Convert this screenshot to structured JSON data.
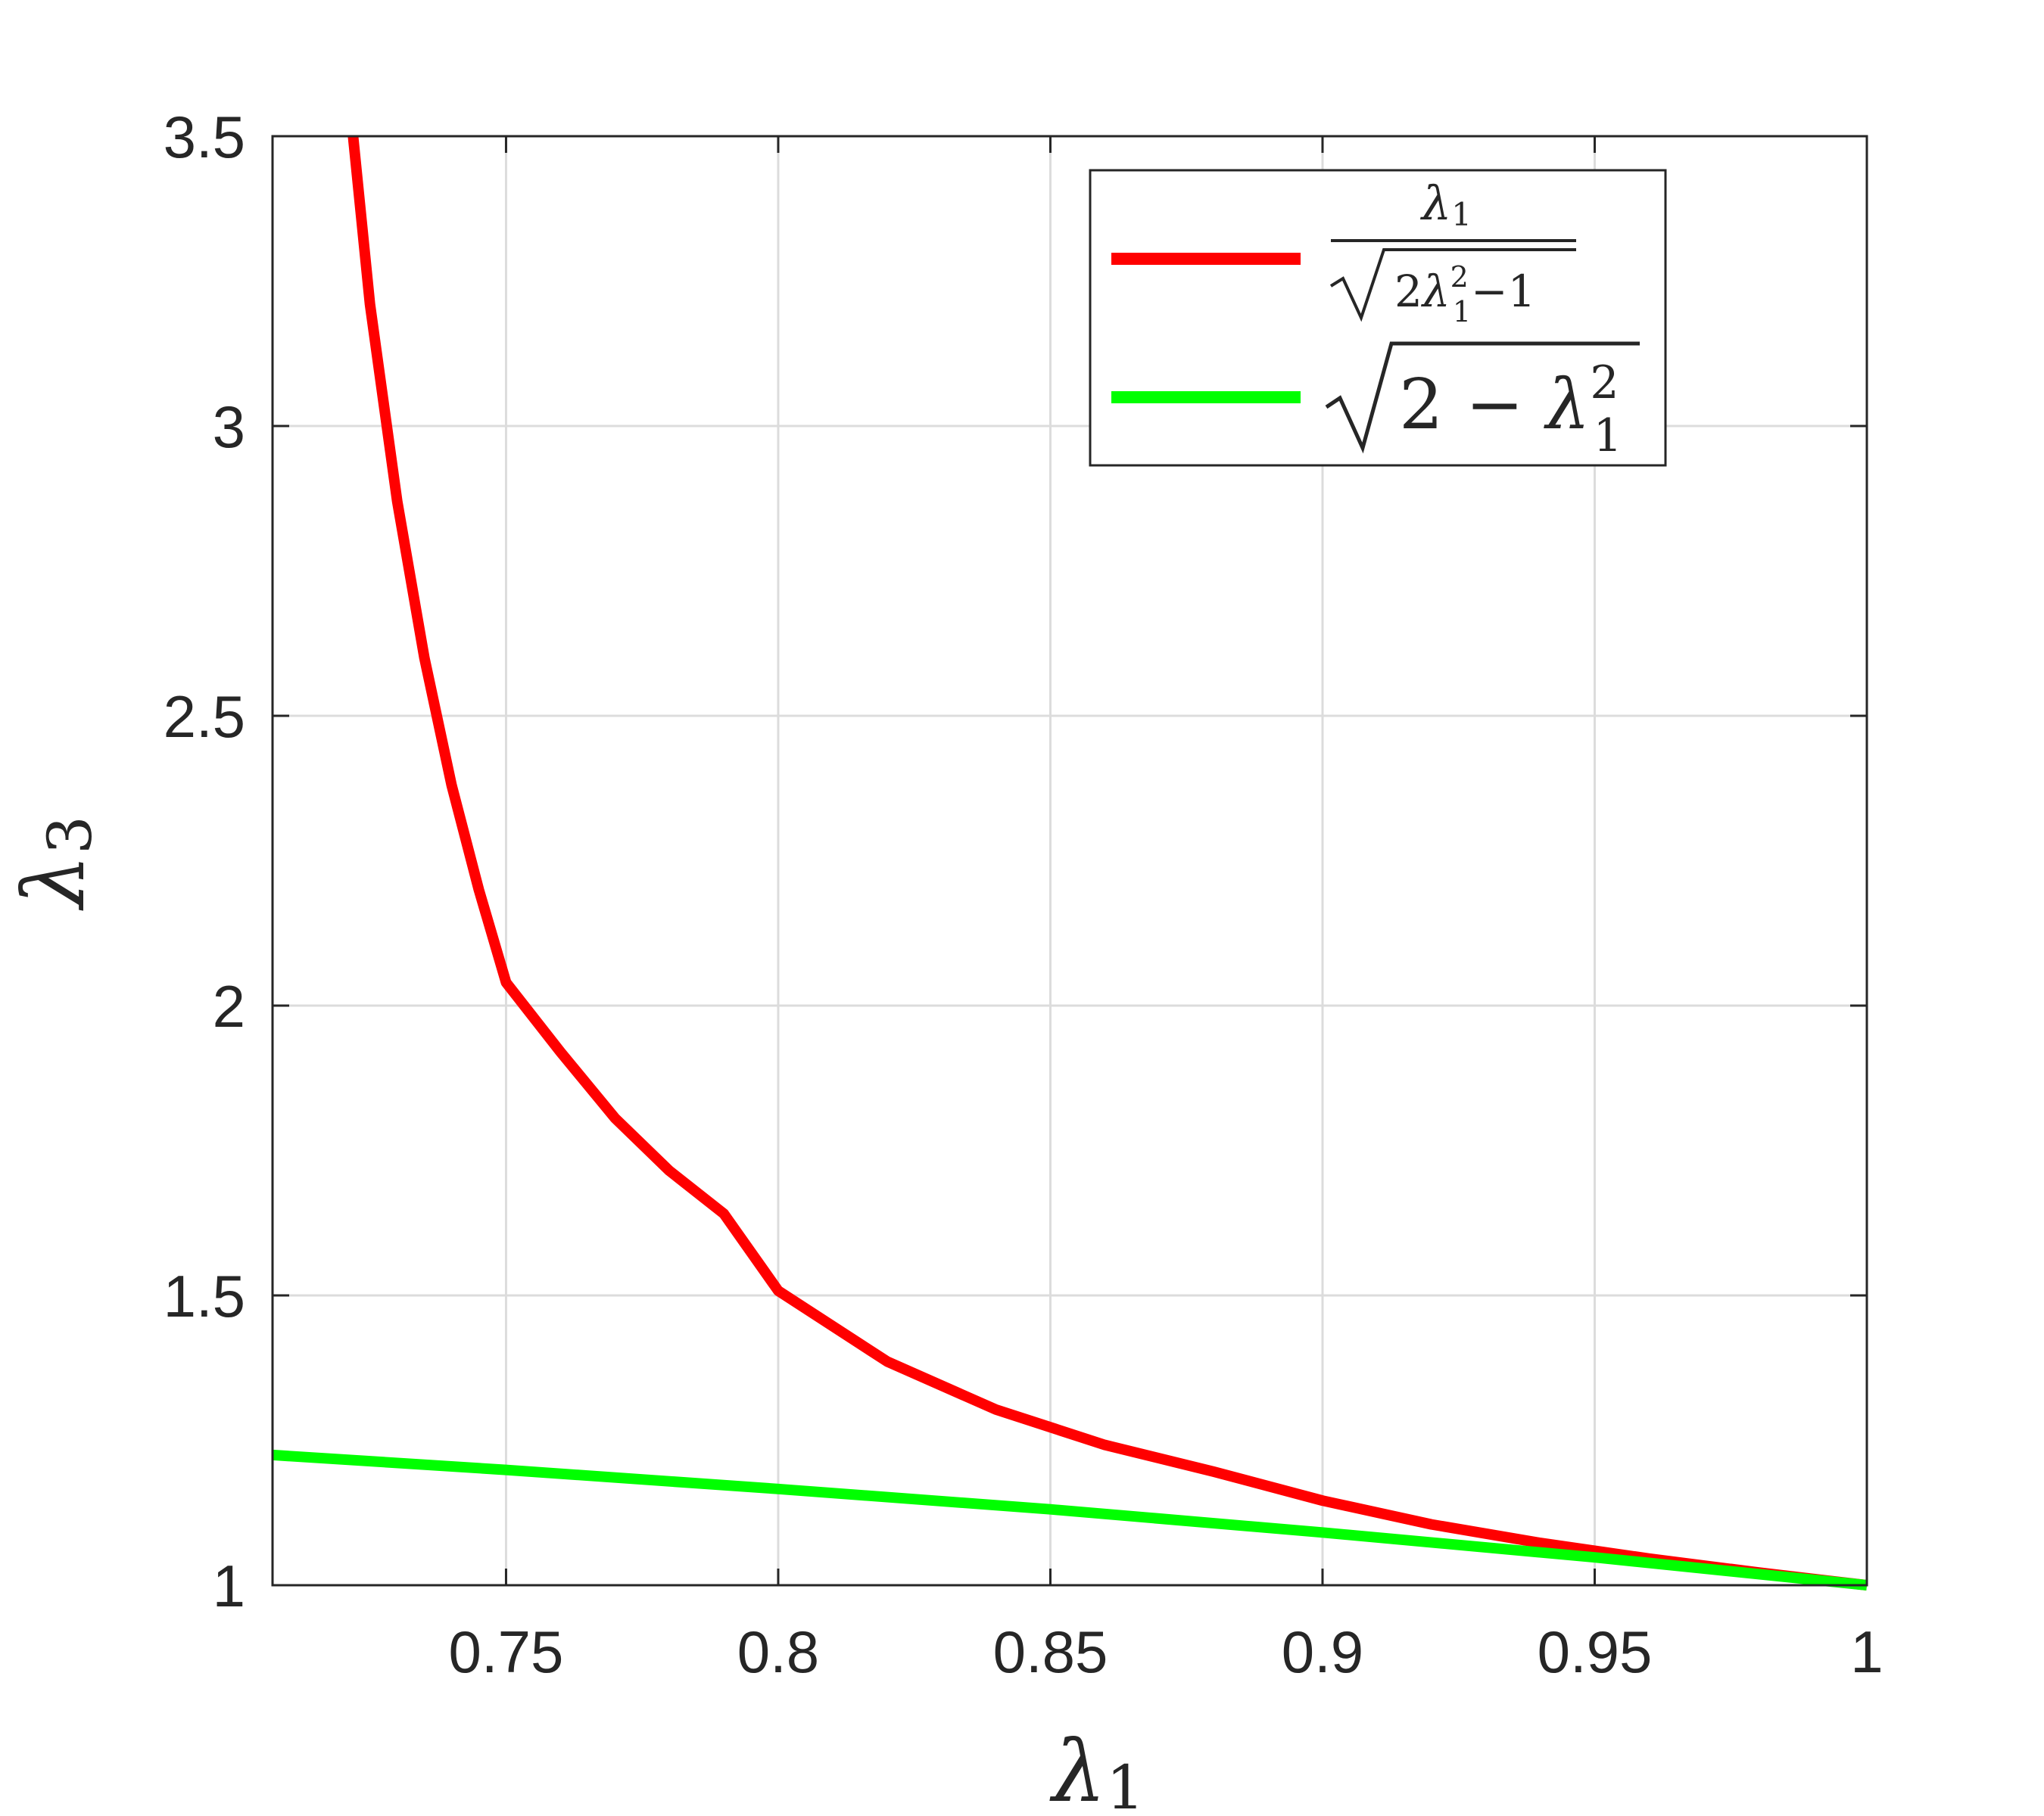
{
  "chart_data": {
    "type": "line",
    "title": "",
    "xlabel": "λ1",
    "ylabel": "λ3",
    "xlim": [
      0.7071,
      1.0
    ],
    "ylim": [
      1.0,
      3.5
    ],
    "xticks": [
      0.75,
      0.8,
      0.85,
      0.9,
      0.95,
      1
    ],
    "xtick_labels": [
      "0.75",
      "0.8",
      "0.85",
      "0.9",
      "0.95",
      "1"
    ],
    "yticks": [
      1,
      1.5,
      2,
      2.5,
      3,
      3.5
    ],
    "ytick_labels": [
      "1",
      "1.5",
      "2",
      "2.5",
      "3",
      "3.5"
    ],
    "grid": true,
    "legend_position": "top-right",
    "series": [
      {
        "name": "λ1/√(2λ1²−1)",
        "color": "#ff0000",
        "x": [
          0.7219,
          0.725,
          0.73,
          0.735,
          0.74,
          0.745,
          0.75,
          0.76,
          0.77,
          0.78,
          0.79,
          0.8,
          0.82,
          0.84,
          0.86,
          0.88,
          0.9,
          0.92,
          0.94,
          0.96,
          0.98,
          1.0
        ],
        "y": [
          3.5,
          3.21,
          2.87,
          2.6,
          2.38,
          2.2,
          2.04,
          1.92,
          1.806,
          1.715,
          1.641,
          1.508,
          1.386,
          1.303,
          1.242,
          1.196,
          1.146,
          1.105,
          1.073,
          1.046,
          1.022,
          1.0
        ]
      },
      {
        "name": "√(2−λ1²)",
        "color": "#00ff00",
        "x": [
          0.7071,
          0.75,
          0.8,
          0.85,
          0.9,
          0.95,
          1.0
        ],
        "y": [
          1.2247,
          1.199,
          1.166,
          1.131,
          1.091,
          1.048,
          1.0
        ]
      }
    ]
  }
}
